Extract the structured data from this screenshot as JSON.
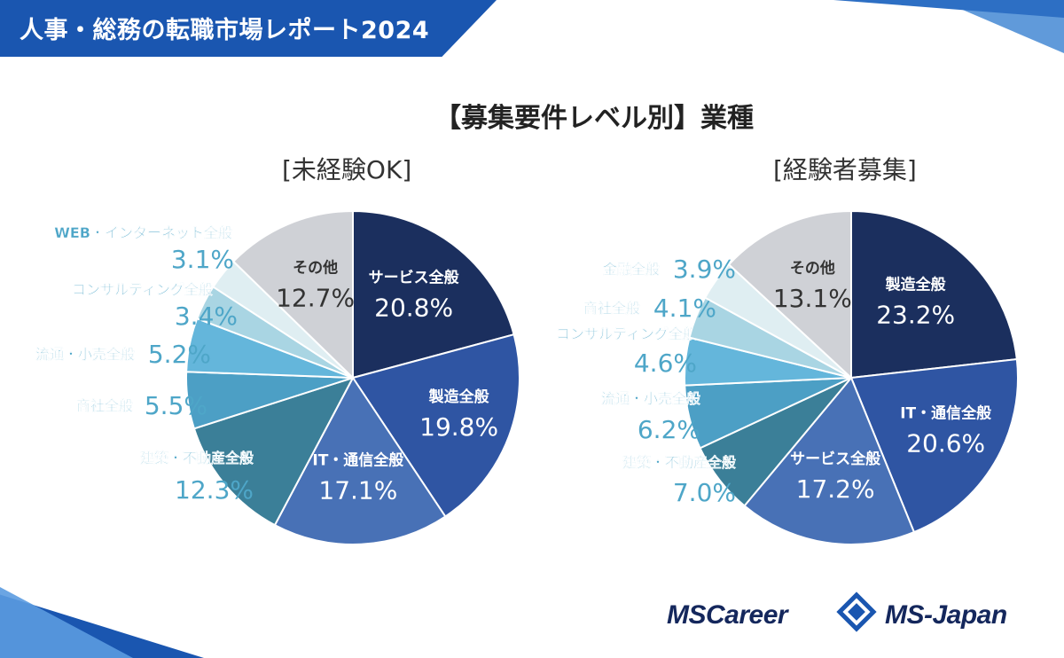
{
  "header": {
    "title": "人事・総務の転職市場レポート2024"
  },
  "main_title": "【募集要件レベル別】業種",
  "logos": {
    "mscareer": "MSCareer",
    "msjapan": "MS-Japan"
  },
  "chart_data": [
    {
      "type": "pie",
      "title": "[未経験OK]",
      "slices": [
        {
          "name": "サービス全般",
          "value": 20.8,
          "label": "20.8%",
          "color": "#1b2f5e"
        },
        {
          "name": "製造全般",
          "value": 19.8,
          "label": "19.8%",
          "color": "#2f55a3"
        },
        {
          "name": "IT・通信全般",
          "value": 17.1,
          "label": "17.1%",
          "color": "#4871b6"
        },
        {
          "name": "建築・不動産全般",
          "value": 12.3,
          "label": "12.3%",
          "color": "#3b7f98"
        },
        {
          "name": "商社全般",
          "value": 5.5,
          "label": "5.5%",
          "color": "#4c9fc5"
        },
        {
          "name": "流通・小売全般",
          "value": 5.2,
          "label": "5.2%",
          "color": "#64b6db"
        },
        {
          "name": "コンサルティング全般",
          "value": 3.4,
          "label": "3.4%",
          "color": "#a9d5e3"
        },
        {
          "name": "WEB・インターネット全般",
          "value": 3.1,
          "label": "3.1%",
          "color": "#dfeef2"
        },
        {
          "name": "その他",
          "value": 12.7,
          "label": "12.7%",
          "color": "#cfd1d6"
        }
      ]
    },
    {
      "type": "pie",
      "title": "[経験者募集]",
      "slices": [
        {
          "name": "製造全般",
          "value": 23.2,
          "label": "23.2%",
          "color": "#1b2f5e"
        },
        {
          "name": "IT・通信全般",
          "value": 20.6,
          "label": "20.6%",
          "color": "#2f55a3"
        },
        {
          "name": "サービス全般",
          "value": 17.2,
          "label": "17.2%",
          "color": "#4871b6"
        },
        {
          "name": "建築・不動産全般",
          "value": 7.0,
          "label": "7.0%",
          "color": "#3b7f98"
        },
        {
          "name": "流通・小売全般",
          "value": 6.2,
          "label": "6.2%",
          "color": "#4c9fc5"
        },
        {
          "name": "コンサルティング全般",
          "value": 4.6,
          "label": "4.6%",
          "color": "#64b6db"
        },
        {
          "name": "商社全般",
          "value": 4.1,
          "label": "4.1%",
          "color": "#a9d5e3"
        },
        {
          "name": "金融全般",
          "value": 3.9,
          "label": "3.9%",
          "color": "#dfeef2"
        },
        {
          "name": "その他",
          "value": 13.1,
          "label": "13.1%",
          "color": "#cfd1d6"
        }
      ]
    }
  ]
}
